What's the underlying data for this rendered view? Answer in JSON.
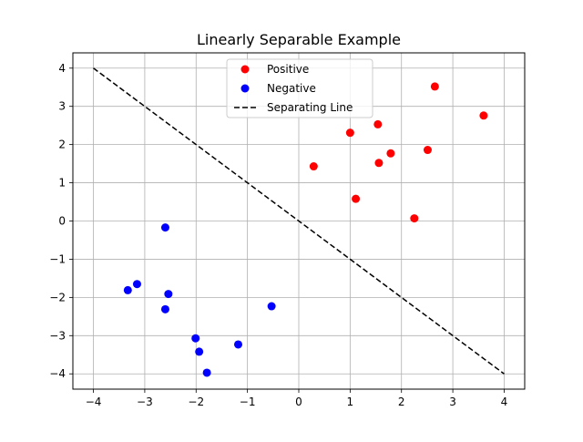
{
  "chart_data": {
    "type": "scatter",
    "title": "Linearly Separable Example",
    "xlabel": "",
    "ylabel": "",
    "xlim": [
      -4.4,
      4.4
    ],
    "ylim": [
      -4.4,
      4.4
    ],
    "xticks": [
      -4,
      -3,
      -2,
      -1,
      0,
      1,
      2,
      3,
      4
    ],
    "yticks": [
      -4,
      -3,
      -2,
      -1,
      0,
      1,
      2,
      3,
      4
    ],
    "xtick_labels": [
      "−4",
      "−3",
      "−2",
      "−1",
      "0",
      "1",
      "2",
      "3",
      "4"
    ],
    "ytick_labels": [
      "−4",
      "−3",
      "−2",
      "−1",
      "0",
      "1",
      "2",
      "3",
      "4"
    ],
    "grid": true,
    "legend_position": "upper-center",
    "series": [
      {
        "name": "Positive",
        "kind": "scatter",
        "color": "#ff0000",
        "points": [
          [
            0.29,
            1.43
          ],
          [
            1.0,
            2.31
          ],
          [
            1.11,
            0.58
          ],
          [
            1.54,
            2.53
          ],
          [
            1.56,
            1.52
          ],
          [
            1.79,
            1.77
          ],
          [
            2.25,
            0.07
          ],
          [
            2.51,
            1.86
          ],
          [
            2.65,
            3.52
          ],
          [
            3.6,
            2.76
          ]
        ]
      },
      {
        "name": "Negative",
        "kind": "scatter",
        "color": "#0000ff",
        "points": [
          [
            -3.33,
            -1.81
          ],
          [
            -3.15,
            -1.65
          ],
          [
            -2.6,
            -0.17
          ],
          [
            -2.6,
            -2.31
          ],
          [
            -2.54,
            -1.91
          ],
          [
            -2.01,
            -3.07
          ],
          [
            -1.94,
            -3.42
          ],
          [
            -1.79,
            -3.97
          ],
          [
            -1.18,
            -3.23
          ],
          [
            -0.53,
            -2.23
          ]
        ]
      },
      {
        "name": "Separating Line",
        "kind": "line",
        "style": "dashed",
        "color": "#000000",
        "points": [
          [
            -4,
            4
          ],
          [
            4,
            -4
          ]
        ]
      }
    ]
  }
}
